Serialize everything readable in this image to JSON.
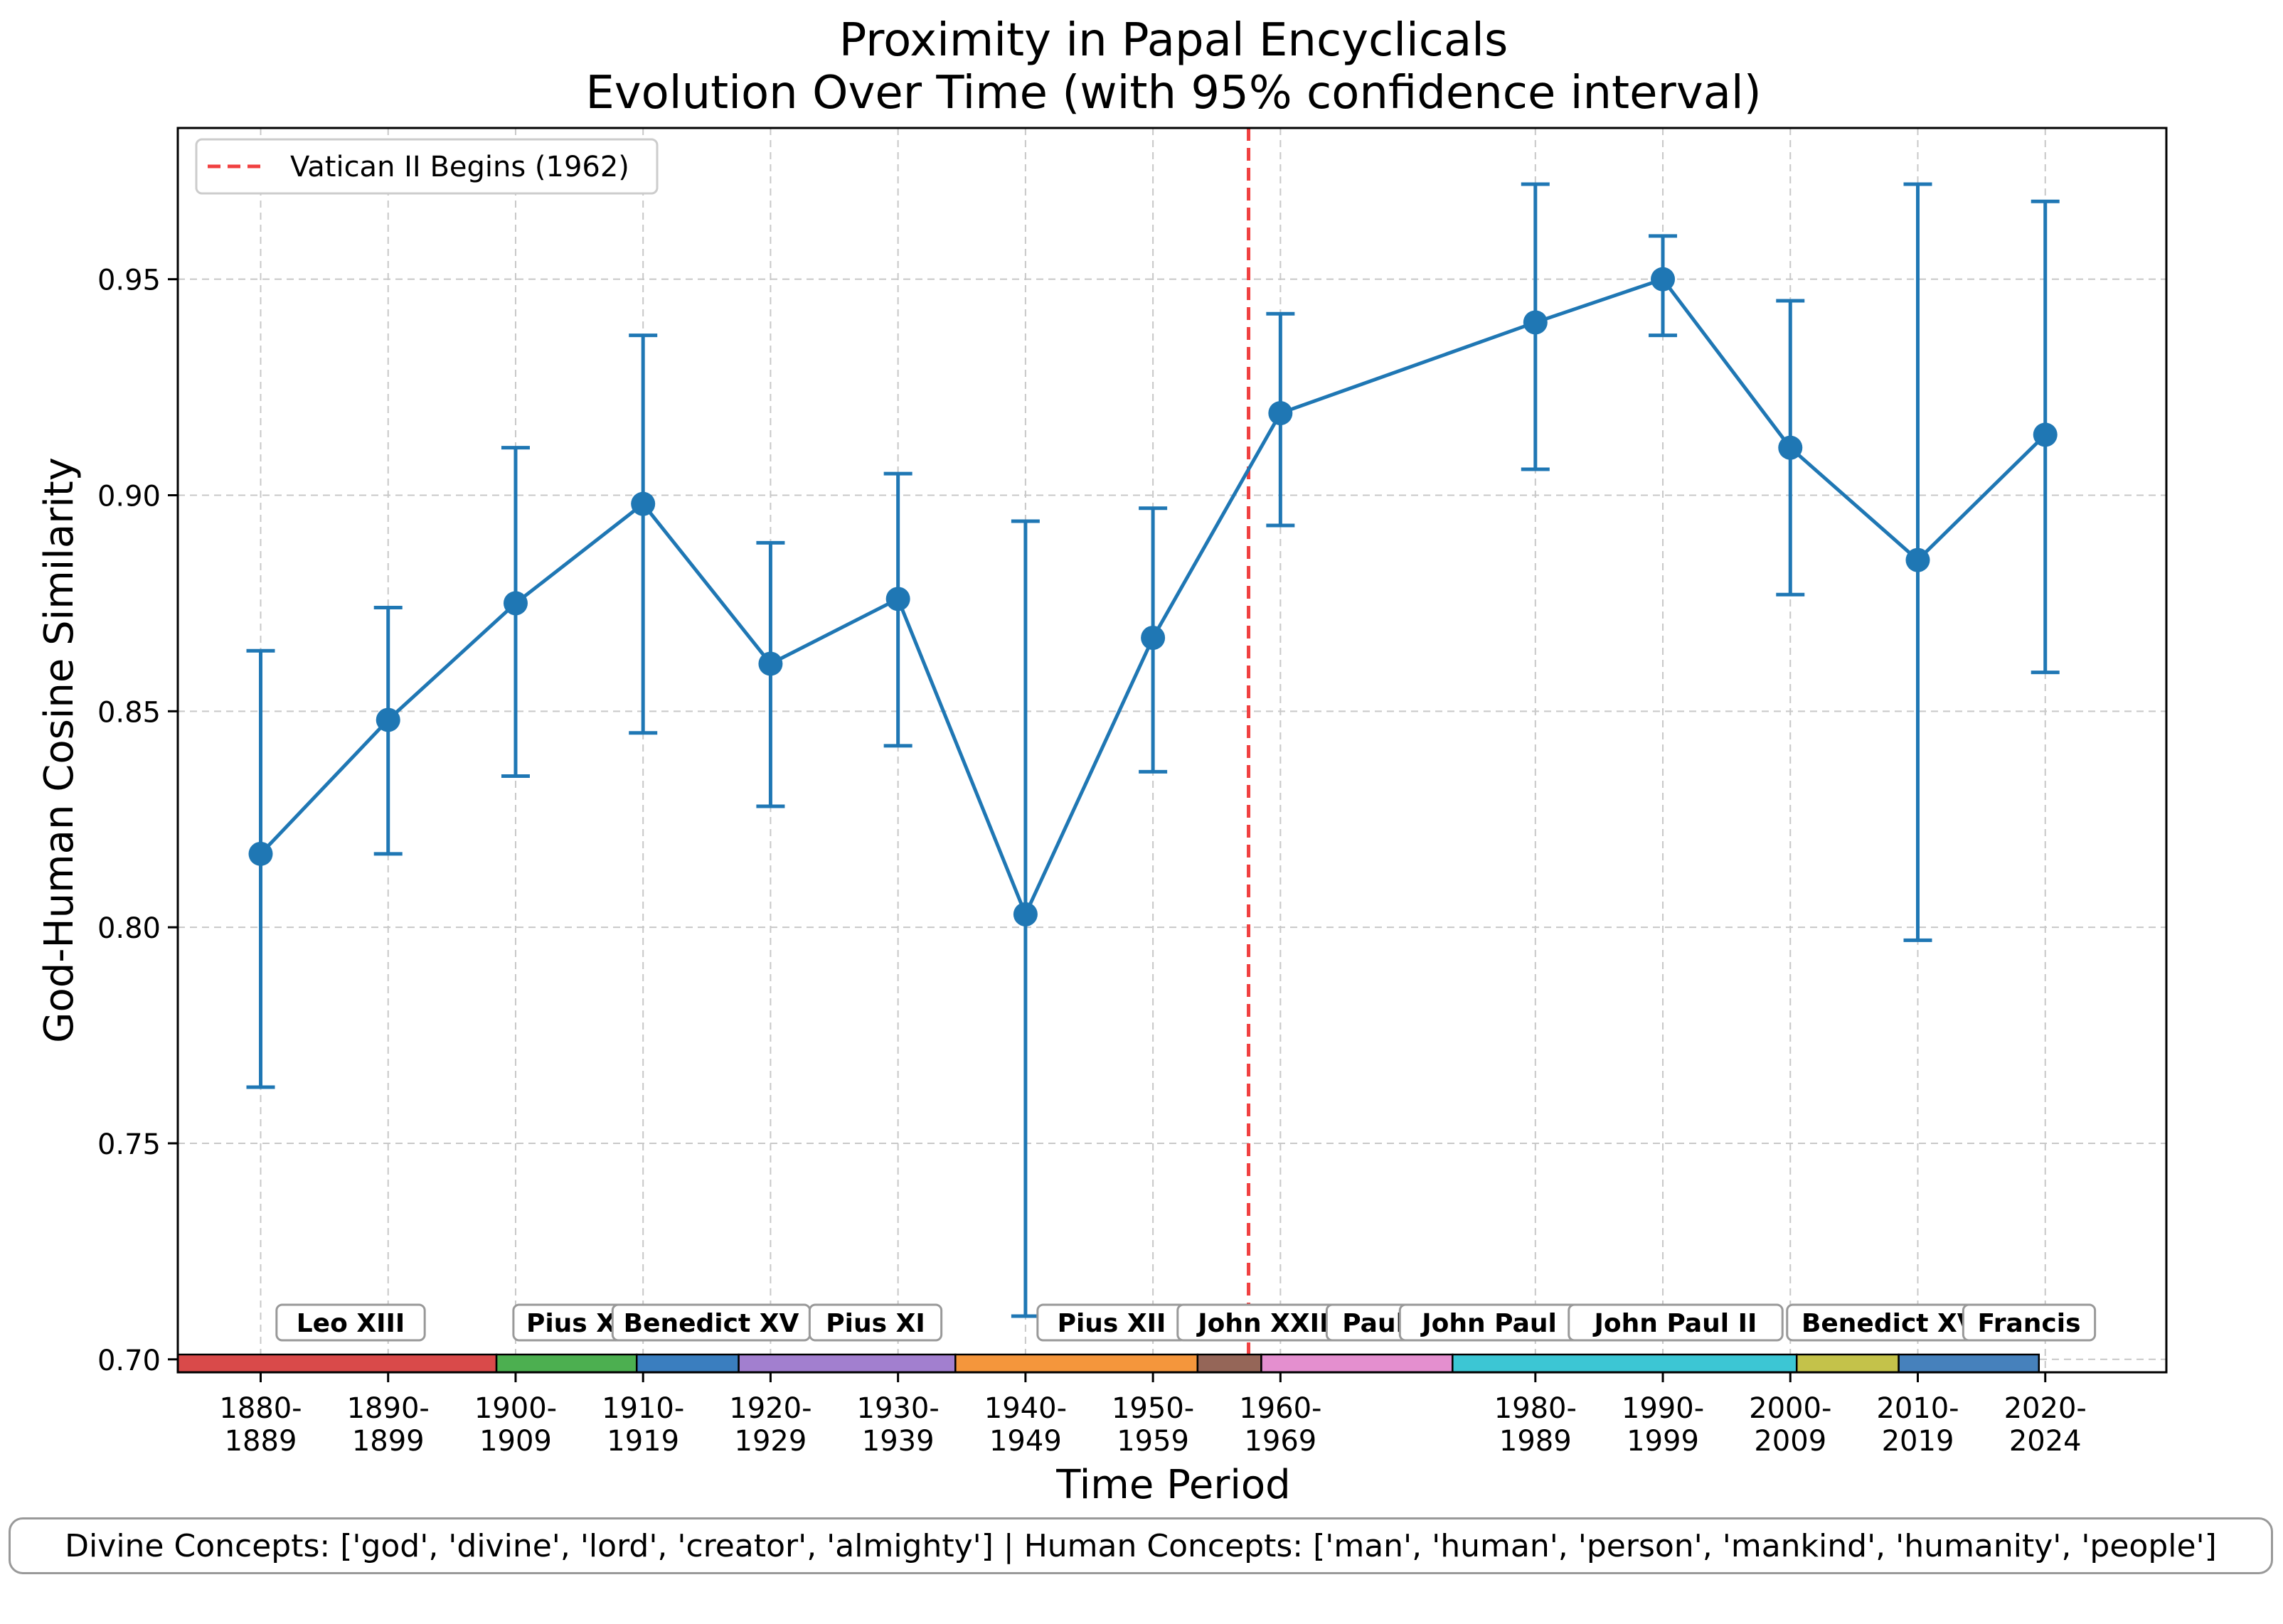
{
  "chart_data": {
    "type": "line",
    "title": "Proximity in Papal Encyclicals\nEvolution Over Time (with 95% confidence interval)",
    "xlabel": "Time Period",
    "ylabel": "God-Human Cosine Similarity",
    "ylim": [
      0.697,
      0.985
    ],
    "yticks": [
      "0.70",
      "0.75",
      "0.80",
      "0.85",
      "0.90",
      "0.95"
    ],
    "grid": true,
    "x": [
      1880,
      1890,
      1900,
      1910,
      1920,
      1930,
      1940,
      1950,
      1960,
      1980,
      1990,
      2000,
      2010,
      2020
    ],
    "xtick_labels": [
      "1880-\n1889",
      "1890-\n1899",
      "1900-\n1909",
      "1910-\n1919",
      "1920-\n1929",
      "1930-\n1939",
      "1940-\n1949",
      "1950-\n1959",
      "1960-\n1969",
      "1980-\n1989",
      "1990-\n1999",
      "2000-\n2009",
      "2010-\n2019",
      "2020-\n2024"
    ],
    "series": [
      {
        "color": "#1f77b4",
        "values": [
          0.817,
          0.848,
          0.875,
          0.898,
          0.861,
          0.876,
          0.803,
          0.867,
          0.919,
          0.94,
          0.95,
          0.911,
          0.885,
          0.914
        ],
        "ci_low": [
          0.763,
          0.817,
          0.835,
          0.845,
          0.828,
          0.842,
          0.71,
          0.836,
          0.893,
          0.906,
          0.937,
          0.877,
          0.797,
          0.859
        ],
        "ci_high": [
          0.864,
          0.874,
          0.911,
          0.937,
          0.889,
          0.905,
          0.894,
          0.897,
          0.942,
          0.972,
          0.96,
          0.945,
          0.972,
          0.968
        ]
      }
    ],
    "vline": {
      "x": 1957.5,
      "label": "Vatican II Begins (1962)",
      "color": "#f04040"
    },
    "legend_position": "top-left",
    "papacies": [
      {
        "name": "Leo XIII",
        "start": 1873.5,
        "end": 1898.5,
        "color": "#d94a4a"
      },
      {
        "name": "Pius X",
        "start": 1898.5,
        "end": 1909.5,
        "color": "#4caf50"
      },
      {
        "name": "Benedict XV",
        "start": 1909.5,
        "end": 1917.5,
        "color": "#3a7ebf"
      },
      {
        "name": "Pius XI",
        "start": 1917.5,
        "end": 1934.5,
        "color": "#a27fcf"
      },
      {
        "name": "Pius XII",
        "start": 1934.5,
        "end": 1953.5,
        "color": "#f4963c"
      },
      {
        "name": "John XXIII",
        "start": 1953.5,
        "end": 1958.5,
        "color": "#956658"
      },
      {
        "name": "Paul VI",
        "start": 1958.5,
        "end": 1973.5,
        "color": "#e48fcf"
      },
      {
        "name": "John Paul I",
        "start": 1973.5,
        "end": 1973.6,
        "color": "#e48fcf"
      },
      {
        "name": "John Paul II",
        "start": 1973.5,
        "end": 2000.5,
        "color": "#3cc6d4"
      },
      {
        "name": "Benedict XVI",
        "start": 2000.5,
        "end": 2008.5,
        "color": "#c4c24a"
      },
      {
        "name": "Francis",
        "start": 2008.5,
        "end": 2019.5,
        "color": "#4681bc"
      }
    ],
    "footer": "Divine Concepts: ['god', 'divine', 'lord', 'creator', 'almighty'] | Human Concepts: ['man', 'human', 'person', 'mankind', 'humanity', 'people']"
  }
}
